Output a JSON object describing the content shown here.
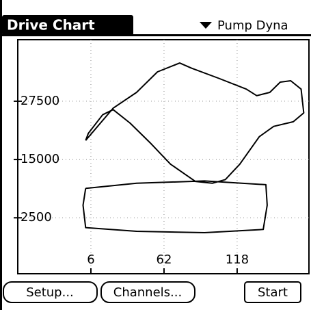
{
  "header": {
    "title": "Drive Chart",
    "dropdown": "Pump Dyna"
  },
  "chart_data": {
    "type": "line",
    "color": "#000000",
    "grid": true,
    "x": [
      2,
      23,
      41,
      57,
      74,
      83,
      104,
      125,
      133,
      143,
      151,
      159,
      167,
      169,
      161,
      146,
      135,
      120,
      109,
      99,
      86,
      67,
      52,
      36,
      23,
      15,
      4,
      2,
      null,
      2,
      41,
      93,
      140,
      141,
      138,
      93,
      41,
      2,
      0,
      2
    ],
    "values": [
      19100,
      26000,
      29400,
      33800,
      35700,
      34600,
      32400,
      30100,
      28700,
      29400,
      31600,
      31900,
      30100,
      25000,
      23100,
      22100,
      19900,
      14000,
      10700,
      9900,
      10300,
      14000,
      18400,
      22800,
      25700,
      24600,
      20600,
      19100,
      null,
      8800,
      9900,
      10400,
      9600,
      5200,
      0,
      -700,
      -400,
      400,
      5200,
      8800
    ],
    "xlim": [
      -50,
      173
    ],
    "xticks": [
      6,
      62,
      118
    ],
    "ylim": [
      -9500,
      40700
    ],
    "yticks": [
      2500,
      15000,
      27500
    ]
  },
  "buttons": [
    "Setup...",
    "Channels...",
    "Start"
  ]
}
